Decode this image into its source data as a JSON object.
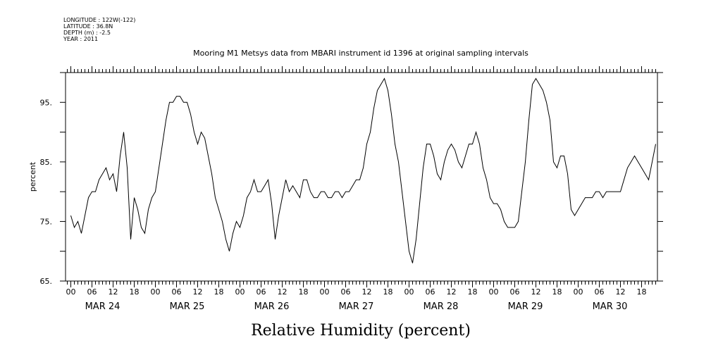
{
  "meta": {
    "longitude": "LONGITUDE : 122W(-122)",
    "latitude": "LATITUDE : 36.8N",
    "depth": "DEPTH (m) : -2.5",
    "year": "YEAR : 2011"
  },
  "chart_data": {
    "type": "line",
    "title": "Mooring M1 Metsys data from MBARI instrument id 1396 at original sampling intervals",
    "xlabel": "Relative Humidity (percent)",
    "ylabel": "percent",
    "ylim": [
      65,
      100
    ],
    "yticks": [
      65,
      75,
      85,
      95
    ],
    "ytick_labels": [
      "65.",
      "75.",
      "85.",
      "95."
    ],
    "x_unit": "hours since MAR 24 00",
    "xlim": [
      -1.5,
      166.5
    ],
    "hour_ticks": [
      "00",
      "06",
      "12",
      "18",
      "00",
      "06",
      "12",
      "18",
      "00",
      "06",
      "12",
      "18",
      "00",
      "06",
      "12",
      "18",
      "00",
      "06",
      "12",
      "18",
      "00",
      "06",
      "12",
      "18",
      "00",
      "06",
      "12",
      "18"
    ],
    "day_labels": [
      "MAR 24",
      "MAR 25",
      "MAR 26",
      "MAR 27",
      "MAR 28",
      "MAR 29",
      "MAR 30"
    ],
    "grid": false,
    "series": [
      {
        "x": [
          0,
          1,
          2,
          3,
          4,
          5,
          6,
          7,
          8,
          9,
          10,
          11,
          12,
          13,
          14,
          15,
          16,
          17,
          18,
          19,
          20,
          21,
          22,
          23,
          24,
          25,
          26,
          27,
          28,
          29,
          30,
          31,
          32,
          33,
          34,
          35,
          36,
          37,
          38,
          39,
          40,
          41,
          42,
          43,
          44,
          45,
          46,
          47,
          48,
          49,
          50,
          51,
          52,
          53,
          54,
          55,
          56,
          57,
          58,
          59,
          60,
          61,
          62,
          63,
          64,
          65,
          66,
          67,
          68,
          69,
          70,
          71,
          72,
          73,
          74,
          75,
          76,
          77,
          78,
          79,
          80,
          81,
          82,
          83,
          84,
          85,
          86,
          87,
          88,
          89,
          90,
          91,
          92,
          93,
          94,
          95,
          96,
          97,
          98,
          99,
          100,
          101,
          102,
          103,
          104,
          105,
          106,
          107,
          108,
          109,
          110,
          111,
          112,
          113,
          114,
          115,
          116,
          117,
          118,
          119,
          120,
          121,
          122,
          123,
          124,
          125,
          126,
          127,
          128,
          129,
          130,
          131,
          132,
          133,
          134,
          135,
          136,
          137,
          138,
          139,
          140,
          141,
          142,
          143,
          144,
          145,
          146,
          147,
          148,
          149,
          150,
          151,
          152,
          153,
          154,
          155,
          156,
          157,
          158,
          159,
          160,
          161,
          162,
          163,
          164,
          165,
          166
        ],
        "y": [
          76,
          74,
          75,
          73,
          76,
          79,
          80,
          80,
          82,
          83,
          84,
          82,
          83,
          80,
          86,
          90,
          84,
          72,
          79,
          77,
          74,
          73,
          77,
          79,
          80,
          84,
          88,
          92,
          95,
          95,
          96,
          96,
          95,
          95,
          93,
          90,
          88,
          90,
          89,
          86,
          83,
          79,
          77,
          75,
          72,
          70,
          73,
          75,
          74,
          76,
          79,
          80,
          82,
          80,
          80,
          81,
          82,
          78,
          72,
          76,
          79,
          82,
          80,
          81,
          80,
          79,
          82,
          82,
          80,
          79,
          79,
          80,
          80,
          79,
          79,
          80,
          80,
          79,
          80,
          80,
          81,
          82,
          82,
          84,
          88,
          90,
          94,
          97,
          98,
          99,
          97,
          93,
          88,
          85,
          80,
          75,
          70,
          68,
          72,
          78,
          84,
          88,
          88,
          86,
          83,
          82,
          85,
          87,
          88,
          87,
          85,
          84,
          86,
          88,
          88,
          90,
          88,
          84,
          82,
          79,
          78,
          78,
          77,
          75,
          74,
          74,
          74,
          75,
          80,
          85,
          92,
          98,
          99,
          98,
          97,
          95,
          92,
          85,
          84,
          86,
          86,
          83,
          77,
          76,
          77,
          78,
          79,
          79,
          79,
          80,
          80,
          79,
          80,
          80,
          80,
          80,
          80,
          82,
          84,
          85,
          86,
          85,
          84,
          83,
          82,
          85,
          88
        ]
      }
    ]
  }
}
